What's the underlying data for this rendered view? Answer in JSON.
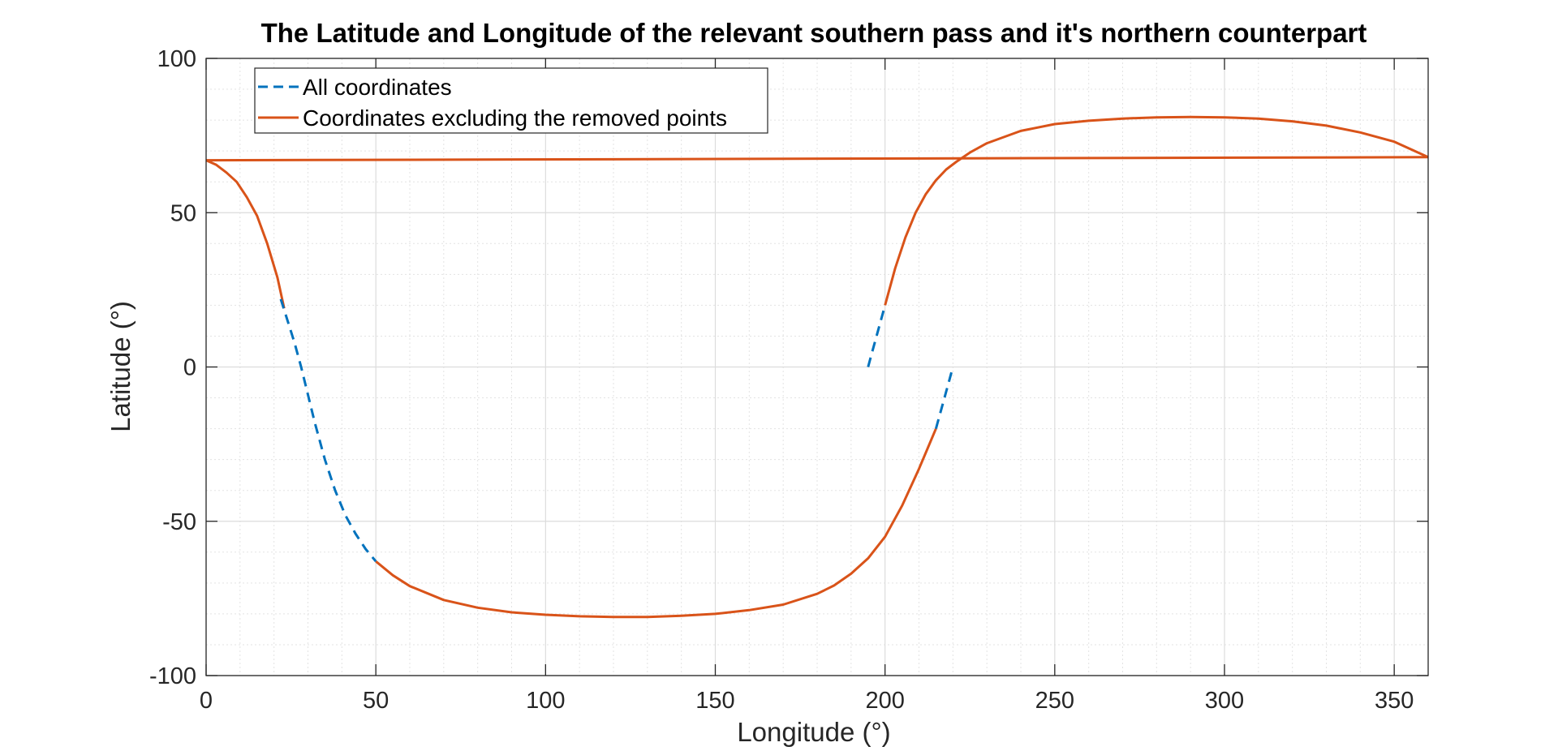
{
  "chart_data": {
    "type": "line",
    "title": "The Latitude and Longitude of the relevant southern pass and it's northern counterpart",
    "xlabel": "Longitude (°)",
    "ylabel": "Latitude (°)",
    "xlim": [
      0,
      360
    ],
    "ylim": [
      -100,
      100
    ],
    "xticks": [
      0,
      50,
      100,
      150,
      200,
      250,
      300,
      350
    ],
    "yticks": [
      -100,
      -50,
      0,
      50,
      100
    ],
    "xtick_labels": [
      "0",
      "50",
      "100",
      "150",
      "200",
      "250",
      "300",
      "350"
    ],
    "ytick_labels": [
      "-100",
      "-50",
      "0",
      "50",
      "100"
    ],
    "grid": true,
    "minor_grid": true,
    "legend_position": "top-left",
    "series": [
      {
        "name": "All coordinates",
        "style": "dashed",
        "color": "#0072BD",
        "segments": [
          {
            "x": [
              22,
              24,
              26,
              28,
              30,
              32,
              35,
              38,
              41,
              44,
              47,
              50
            ],
            "y": [
              22,
              15,
              8,
              0,
              -9,
              -18,
              -30,
              -40,
              -48,
              -54,
              -59,
              -63
            ]
          },
          {
            "x": [
              195,
              196,
              197,
              198,
              199,
              200
            ],
            "y": [
              0,
              4,
              8,
              12,
              16,
              20
            ]
          },
          {
            "x": [
              215,
              216,
              217,
              218,
              219,
              220
            ],
            "y": [
              -20,
              -16,
              -12,
              -8,
              -4,
              0
            ]
          }
        ]
      },
      {
        "name": "Coordinates excluding the removed points",
        "style": "solid",
        "color": "#D95319",
        "segments": [
          {
            "x": [
              23,
              21,
              18,
              15,
              12,
              9,
              6,
              3,
              0
            ],
            "y": [
              19,
              29,
              40,
              49,
              55,
              60,
              63,
              65.5,
              67
            ]
          },
          {
            "x": [
              0,
              360
            ],
            "y": [
              67,
              68
            ]
          },
          {
            "x": [
              50,
              55,
              60,
              70,
              80,
              90,
              100,
              110,
              120,
              125,
              130,
              140,
              150,
              160,
              170,
              180,
              185,
              190,
              195,
              200,
              205,
              210,
              215
            ],
            "y": [
              -63,
              -67.5,
              -71,
              -75.5,
              -78,
              -79.5,
              -80.3,
              -80.8,
              -81,
              -81,
              -81,
              -80.6,
              -80,
              -78.8,
              -77,
              -73.5,
              -70.8,
              -67,
              -62,
              -55,
              -45,
              -33,
              -20
            ]
          },
          {
            "x": [
              200,
              203,
              206,
              209,
              212,
              215,
              218,
              221,
              225,
              230,
              240,
              250,
              260,
              270,
              280,
              290,
              300,
              310,
              320,
              330,
              340,
              350,
              360
            ],
            "y": [
              20,
              32,
              42,
              50,
              56,
              60.5,
              64,
              66.5,
              69.5,
              72.5,
              76.5,
              78.7,
              79.8,
              80.5,
              80.9,
              81,
              80.9,
              80.5,
              79.6,
              78.2,
              76,
              73,
              68
            ]
          }
        ]
      }
    ]
  }
}
